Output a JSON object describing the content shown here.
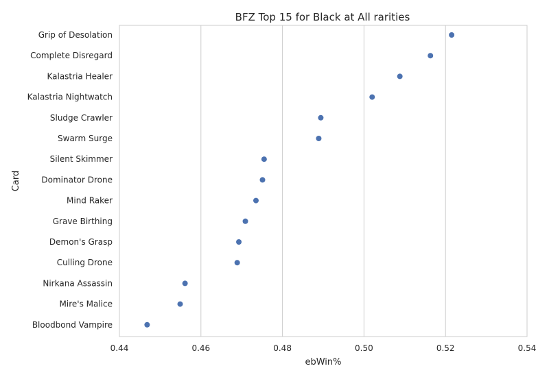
{
  "chart_data": {
    "type": "scatter",
    "title": "BFZ Top 15 for Black at All rarities",
    "xlabel": "ebWin%",
    "ylabel": "Card",
    "xlim": [
      0.44,
      0.54
    ],
    "xticks": [
      "0.44",
      "0.46",
      "0.48",
      "0.50",
      "0.52",
      "0.54"
    ],
    "grid": "vertical",
    "categories": [
      "Grip of Desolation",
      "Complete Disregard",
      "Kalastria Healer",
      "Kalastria Nightwatch",
      "Sludge Crawler",
      "Swarm Surge",
      "Silent Skimmer",
      "Dominator Drone",
      "Mind Raker",
      "Grave Birthing",
      "Demon's Grasp",
      "Culling Drone",
      "Nirkana Assassin",
      "Mire's Malice",
      "Bloodbond Vampire"
    ],
    "values": [
      0.5215,
      0.5163,
      0.5088,
      0.502,
      0.4894,
      0.4889,
      0.4755,
      0.4751,
      0.4735,
      0.4709,
      0.4693,
      0.4689,
      0.4561,
      0.4549,
      0.4468
    ],
    "colors": {
      "point": "#4c72b0",
      "grid": "#cccccc"
    }
  }
}
